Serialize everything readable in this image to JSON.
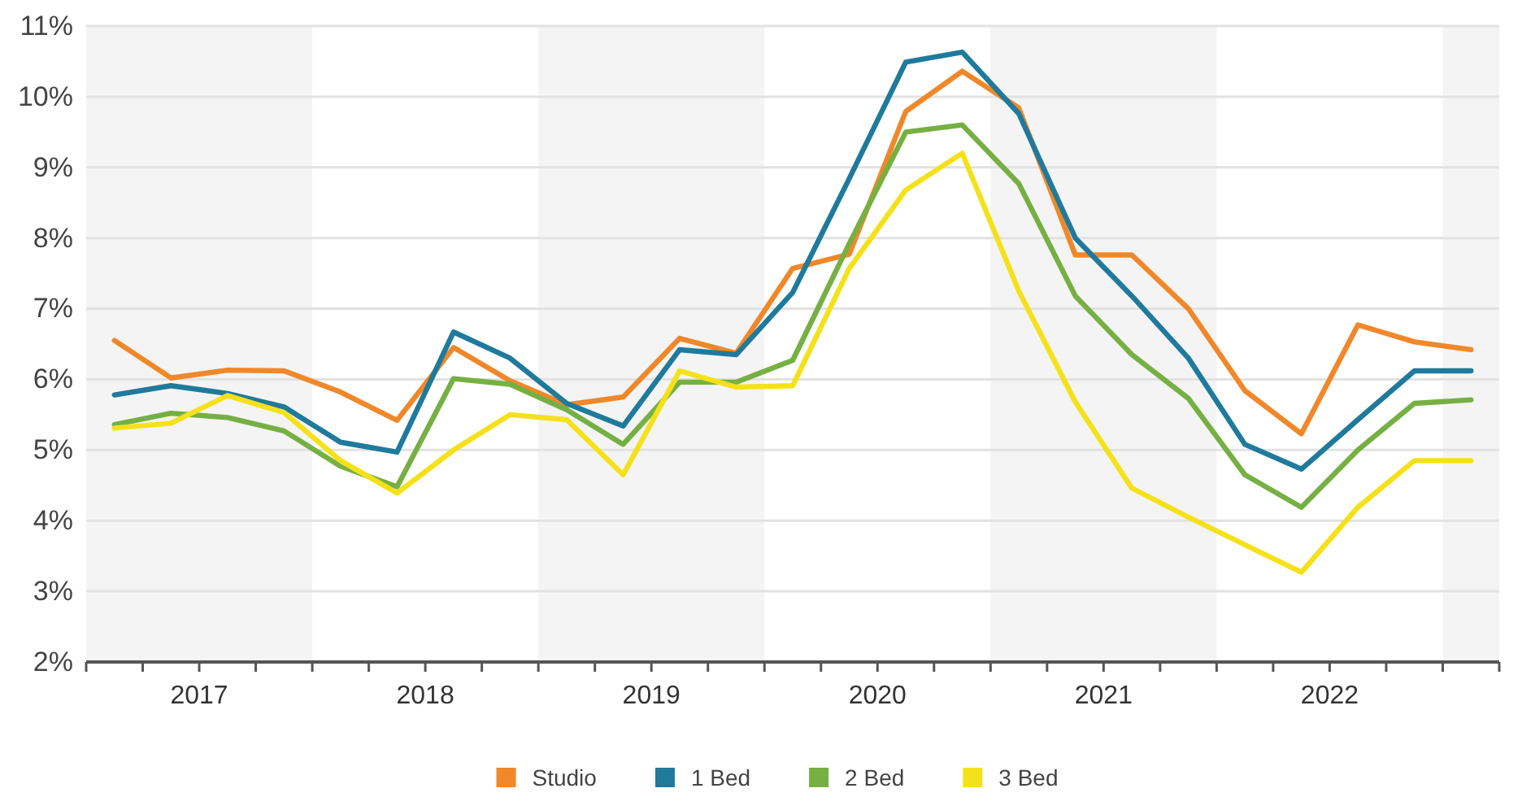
{
  "chart_data": {
    "type": "line",
    "x": [
      2017,
      2017.25,
      2017.5,
      2017.75,
      2018,
      2018.25,
      2018.5,
      2018.75,
      2019,
      2019.25,
      2019.5,
      2019.75,
      2020,
      2020.25,
      2020.5,
      2020.75,
      2021,
      2021.25,
      2021.5,
      2021.75,
      2022,
      2022.25,
      2022.5,
      2022.75,
      2023
    ],
    "series": [
      {
        "name": "Studio",
        "color": "#f0882a",
        "values": [
          6.55,
          6.02,
          6.13,
          6.12,
          5.82,
          5.42,
          6.45,
          5.98,
          5.64,
          5.75,
          6.58,
          6.37,
          7.57,
          7.77,
          9.79,
          10.36,
          9.84,
          7.76,
          7.76,
          7.0,
          5.84,
          5.23,
          6.77,
          6.53,
          6.42
        ]
      },
      {
        "name": "1 Bed",
        "color": "#1f7a9c",
        "values": [
          5.78,
          5.91,
          5.8,
          5.61,
          5.11,
          4.97,
          6.67,
          6.3,
          5.66,
          5.34,
          6.42,
          6.35,
          7.23,
          8.84,
          10.49,
          10.63,
          9.76,
          8.0,
          7.18,
          6.3,
          5.08,
          4.73,
          5.43,
          6.12,
          6.12
        ]
      },
      {
        "name": "2 Bed",
        "color": "#76b043",
        "values": [
          5.36,
          5.52,
          5.46,
          5.27,
          4.77,
          4.48,
          6.01,
          5.93,
          5.57,
          5.08,
          5.96,
          5.96,
          6.27,
          7.92,
          9.5,
          9.6,
          8.77,
          7.18,
          6.35,
          5.73,
          4.65,
          4.19,
          5.0,
          5.66,
          5.71
        ]
      },
      {
        "name": "3 Bed",
        "color": "#f5e11a",
        "values": [
          5.31,
          5.38,
          5.77,
          5.53,
          4.85,
          4.39,
          5.0,
          5.5,
          5.43,
          4.65,
          6.12,
          5.89,
          5.91,
          7.57,
          8.68,
          9.2,
          7.25,
          5.68,
          4.46,
          4.05,
          3.66,
          3.27,
          4.19,
          4.85,
          4.85
        ]
      }
    ],
    "xlim": [
      2016.875,
      2023.125
    ],
    "xticks": [
      {
        "value": 2016.875,
        "label": null
      },
      {
        "value": 2017.125,
        "label": null
      },
      {
        "value": 2017.375,
        "label": "2017"
      },
      {
        "value": 2017.625,
        "label": null
      },
      {
        "value": 2017.875,
        "label": null
      },
      {
        "value": 2018.125,
        "label": null
      },
      {
        "value": 2018.375,
        "label": "2018"
      },
      {
        "value": 2018.625,
        "label": null
      },
      {
        "value": 2018.875,
        "label": null
      },
      {
        "value": 2019.125,
        "label": null
      },
      {
        "value": 2019.375,
        "label": "2019"
      },
      {
        "value": 2019.625,
        "label": null
      },
      {
        "value": 2019.875,
        "label": null
      },
      {
        "value": 2020.125,
        "label": null
      },
      {
        "value": 2020.375,
        "label": "2020"
      },
      {
        "value": 2020.625,
        "label": null
      },
      {
        "value": 2020.875,
        "label": null
      },
      {
        "value": 2021.125,
        "label": null
      },
      {
        "value": 2021.375,
        "label": "2021"
      },
      {
        "value": 2021.625,
        "label": null
      },
      {
        "value": 2021.875,
        "label": null
      },
      {
        "value": 2022.125,
        "label": null
      },
      {
        "value": 2022.375,
        "label": "2022"
      },
      {
        "value": 2022.625,
        "label": null
      },
      {
        "value": 2022.875,
        "label": null
      },
      {
        "value": 2023.125,
        "label": null
      }
    ],
    "ylim": [
      2,
      11
    ],
    "yticks": [
      {
        "value": 2,
        "label": "2%"
      },
      {
        "value": 3,
        "label": "3%"
      },
      {
        "value": 4,
        "label": "4%"
      },
      {
        "value": 5,
        "label": "5%"
      },
      {
        "value": 6,
        "label": "6%"
      },
      {
        "value": 7,
        "label": "7%"
      },
      {
        "value": 8,
        "label": "8%"
      },
      {
        "value": 9,
        "label": "9%"
      },
      {
        "value": 10,
        "label": "10%"
      },
      {
        "value": 11,
        "label": "11%"
      }
    ],
    "bands": [
      {
        "axis": "x",
        "from": 2016.875,
        "to": 2017.875,
        "color": "#f4f4f4"
      },
      {
        "axis": "x",
        "from": 2018.875,
        "to": 2019.875,
        "color": "#f4f4f4"
      },
      {
        "axis": "x",
        "from": 2020.875,
        "to": 2021.875,
        "color": "#f4f4f4"
      },
      {
        "axis": "x",
        "from": 2022.875,
        "to": 2023.125,
        "color": "#f4f4f4"
      }
    ],
    "grid": "y",
    "legend": "bottom",
    "marker": "none",
    "line_style": "solid"
  }
}
